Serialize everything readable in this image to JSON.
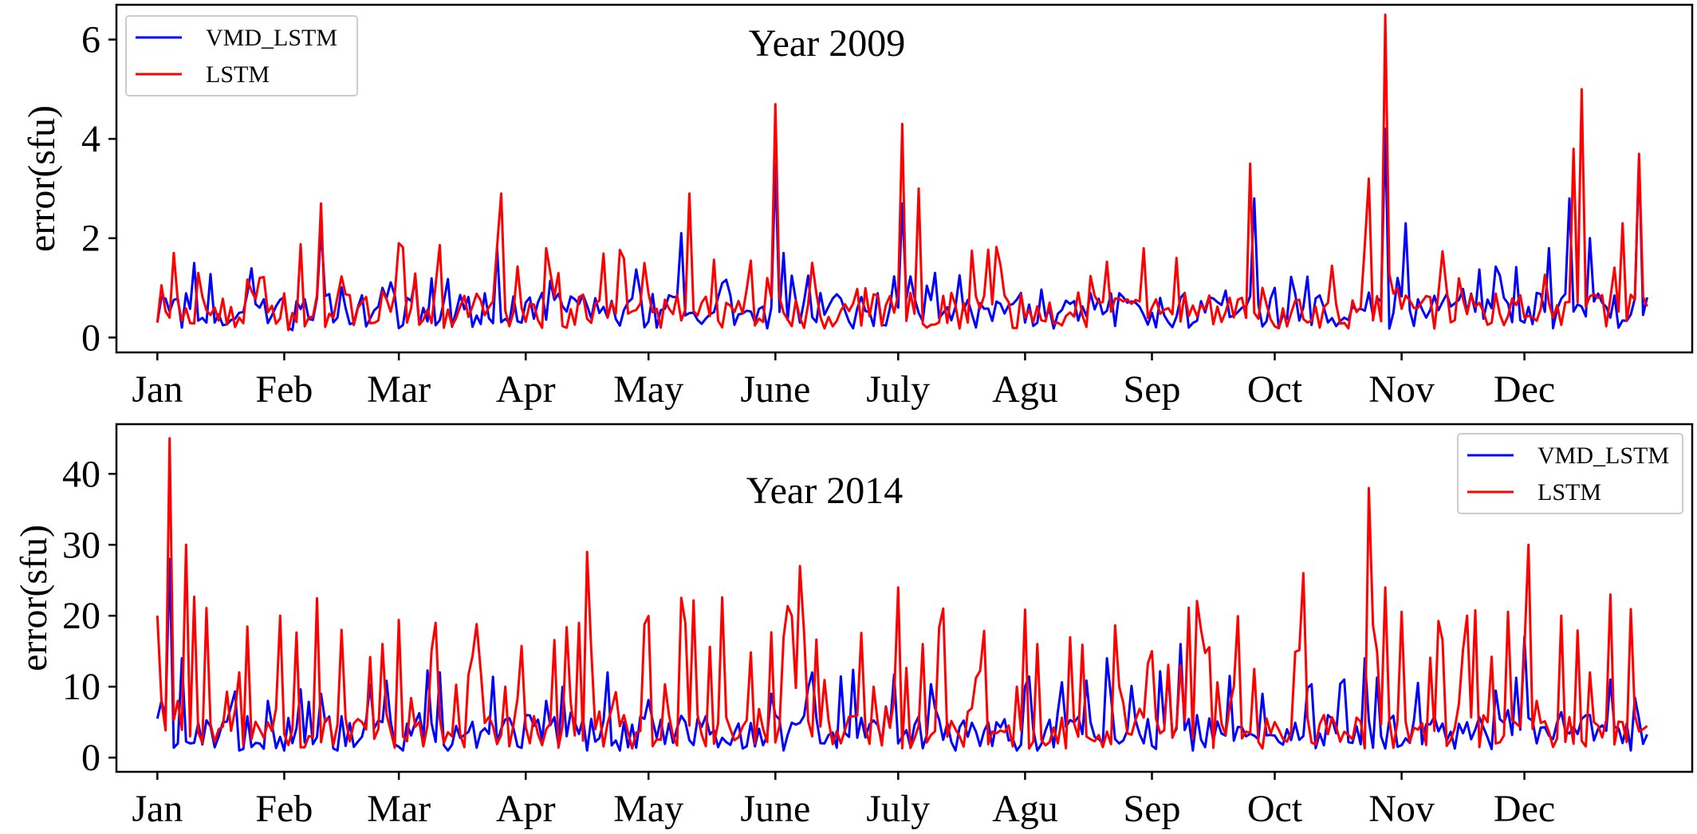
{
  "colors": {
    "VMD_LSTM": "#0000ff",
    "LSTM": "#ff0000"
  },
  "chart_data": [
    {
      "type": "line",
      "title": "Year 2009",
      "xlabel": "",
      "ylabel": "error(sfu)",
      "xlim": [
        -10,
        375
      ],
      "ylim": [
        -0.3,
        6.7
      ],
      "yticks": [
        0,
        2,
        4,
        6
      ],
      "xticks": [
        {
          "label": "Jan",
          "day": 0
        },
        {
          "label": "Feb",
          "day": 31
        },
        {
          "label": "Mar",
          "day": 59
        },
        {
          "label": "Apr",
          "day": 90
        },
        {
          "label": "May",
          "day": 120
        },
        {
          "label": "June",
          "day": 151
        },
        {
          "label": "July",
          "day": 181
        },
        {
          "label": "Agu",
          "day": 212
        },
        {
          "label": "Sep",
          "day": 243
        },
        {
          "label": "Oct",
          "day": 273
        },
        {
          "label": "Nov",
          "day": 304
        },
        {
          "label": "Dec",
          "day": 334
        }
      ],
      "legend_position": "top-left",
      "series": [
        {
          "name": "VMD_LSTM",
          "anchors": [
            [
              0,
              0.3
            ],
            [
              6,
              0.2
            ],
            [
              9,
              1.5
            ],
            [
              12,
              0.3
            ],
            [
              20,
              0.5
            ],
            [
              25,
              0.6
            ],
            [
              33,
              0.15
            ],
            [
              40,
              2.2
            ],
            [
              44,
              0.4
            ],
            [
              55,
              1.0
            ],
            [
              60,
              0.25
            ],
            [
              83,
              1.8
            ],
            [
              86,
              0.3
            ],
            [
              94,
              0.9
            ],
            [
              110,
              0.4
            ],
            [
              118,
              0.9
            ],
            [
              122,
              0.2
            ],
            [
              128,
              2.1
            ],
            [
              131,
              0.5
            ],
            [
              150,
              0.6
            ],
            [
              151,
              3.5
            ],
            [
              153,
              1.7
            ],
            [
              157,
              0.3
            ],
            [
              181,
              0.6
            ],
            [
              182,
              2.7
            ],
            [
              185,
              0.8
            ],
            [
              190,
              1.3
            ],
            [
              212,
              0.3
            ],
            [
              243,
              0.5
            ],
            [
              265,
              0.6
            ],
            [
              268,
              2.8
            ],
            [
              273,
              1.0
            ],
            [
              290,
              0.4
            ],
            [
              298,
              0.8
            ],
            [
              300,
              4.2
            ],
            [
              303,
              1.2
            ],
            [
              305,
              2.3
            ],
            [
              310,
              0.4
            ],
            [
              334,
              0.3
            ],
            [
              340,
              1.8
            ],
            [
              345,
              2.8
            ],
            [
              350,
              2.0
            ],
            [
              355,
              0.4
            ],
            [
              362,
              3.6
            ]
          ]
        },
        {
          "name": "LSTM",
          "anchors": [
            [
              0,
              0.3
            ],
            [
              1,
              1.05
            ],
            [
              3,
              0.4
            ],
            [
              10,
              1.3
            ],
            [
              20,
              0.4
            ],
            [
              25,
              1.2
            ],
            [
              32,
              0.15
            ],
            [
              40,
              2.7
            ],
            [
              43,
              0.4
            ],
            [
              59,
              1.9
            ],
            [
              61,
              0.3
            ],
            [
              84,
              2.9
            ],
            [
              87,
              0.5
            ],
            [
              95,
              1.8
            ],
            [
              110,
              0.4
            ],
            [
              119,
              1.5
            ],
            [
              123,
              0.2
            ],
            [
              130,
              2.9
            ],
            [
              133,
              0.7
            ],
            [
              150,
              0.8
            ],
            [
              151,
              4.7
            ],
            [
              153,
              0.5
            ],
            [
              180,
              0.5
            ],
            [
              182,
              4.3
            ],
            [
              184,
              0.9
            ],
            [
              186,
              3.0
            ],
            [
              188,
              0.2
            ],
            [
              212,
              0.4
            ],
            [
              243,
              0.6
            ],
            [
              265,
              0.8
            ],
            [
              267,
              3.5
            ],
            [
              270,
              1.0
            ],
            [
              296,
              3.2
            ],
            [
              300,
              6.5
            ],
            [
              303,
              1.0
            ],
            [
              308,
              0.6
            ],
            [
              334,
              0.4
            ],
            [
              346,
              3.8
            ],
            [
              348,
              5.0
            ],
            [
              352,
              0.8
            ],
            [
              358,
              2.3
            ],
            [
              362,
              3.7
            ]
          ]
        }
      ]
    },
    {
      "type": "line",
      "title": "Year 2014",
      "xlabel": "",
      "ylabel": "error(sfu)",
      "xlim": [
        -10,
        375
      ],
      "ylim": [
        -2,
        47
      ],
      "yticks": [
        0,
        10,
        20,
        30,
        40
      ],
      "xticks": [
        {
          "label": "Jan",
          "day": 0
        },
        {
          "label": "Feb",
          "day": 31
        },
        {
          "label": "Mar",
          "day": 59
        },
        {
          "label": "Apr",
          "day": 90
        },
        {
          "label": "May",
          "day": 120
        },
        {
          "label": "June",
          "day": 151
        },
        {
          "label": "July",
          "day": 181
        },
        {
          "label": "Agu",
          "day": 212
        },
        {
          "label": "Sep",
          "day": 243
        },
        {
          "label": "Oct",
          "day": 273
        },
        {
          "label": "Nov",
          "day": 304
        },
        {
          "label": "Dec",
          "day": 334
        }
      ],
      "legend_position": "top-right",
      "series": [
        {
          "name": "VMD_LSTM",
          "anchors": [
            [
              0,
              5.5
            ],
            [
              1,
              8
            ],
            [
              3,
              28
            ],
            [
              5,
              2
            ],
            [
              6,
              14
            ],
            [
              8,
              2
            ],
            [
              15,
              3
            ],
            [
              20,
              1
            ],
            [
              27,
              8
            ],
            [
              31,
              1
            ],
            [
              40,
              9
            ],
            [
              44,
              1
            ],
            [
              55,
              5
            ],
            [
              60,
              1
            ],
            [
              69,
              12
            ],
            [
              71,
              1
            ],
            [
              90,
              6
            ],
            [
              105,
              1
            ],
            [
              110,
              12
            ],
            [
              113,
              1
            ],
            [
              150,
              9
            ],
            [
              153,
              1
            ],
            [
              160,
              12
            ],
            [
              163,
              2
            ],
            [
              181,
              2
            ],
            [
              190,
              7
            ],
            [
              195,
              1
            ],
            [
              210,
              1
            ],
            [
              212,
              10
            ],
            [
              215,
              1
            ],
            [
              232,
              14
            ],
            [
              235,
              2
            ],
            [
              250,
              16
            ],
            [
              253,
              1
            ],
            [
              270,
              9
            ],
            [
              290,
              11
            ],
            [
              295,
              14
            ],
            [
              299,
              3
            ],
            [
              334,
              17
            ],
            [
              337,
              2
            ],
            [
              350,
              6
            ],
            [
              355,
              11
            ],
            [
              360,
              1
            ],
            [
              365,
              1.5
            ]
          ]
        },
        {
          "name": "LSTM",
          "anchors": [
            [
              0,
              20
            ],
            [
              1,
              8
            ],
            [
              3,
              45
            ],
            [
              5,
              8
            ],
            [
              7,
              30
            ],
            [
              8,
              3
            ],
            [
              15,
              4
            ],
            [
              20,
              12
            ],
            [
              25,
              4
            ],
            [
              30,
              20
            ],
            [
              33,
              4
            ],
            [
              45,
              18
            ],
            [
              50,
              5
            ],
            [
              55,
              16
            ],
            [
              60,
              3
            ],
            [
              68,
              19
            ],
            [
              72,
              3
            ],
            [
              85,
              10
            ],
            [
              95,
              4
            ],
            [
              103,
              19
            ],
            [
              105,
              29
            ],
            [
              107,
              4
            ],
            [
              125,
              6
            ],
            [
              129,
              19
            ],
            [
              132,
              6
            ],
            [
              140,
              4
            ],
            [
              155,
              20
            ],
            [
              157,
              27
            ],
            [
              160,
              3
            ],
            [
              175,
              10
            ],
            [
              181,
              24
            ],
            [
              187,
              16
            ],
            [
              192,
              21
            ],
            [
              196,
              3
            ],
            [
              210,
              10
            ],
            [
              215,
              16
            ],
            [
              220,
              2
            ],
            [
              235,
              10
            ],
            [
              243,
              15
            ],
            [
              250,
              13
            ],
            [
              255,
              18
            ],
            [
              263,
              10
            ],
            [
              273,
              5
            ],
            [
              280,
              26
            ],
            [
              285,
              6
            ],
            [
              296,
              38
            ],
            [
              298,
              15
            ],
            [
              300,
              24
            ],
            [
              305,
              5
            ],
            [
              320,
              20
            ],
            [
              325,
              5
            ],
            [
              335,
              30
            ],
            [
              337,
              8
            ],
            [
              343,
              20
            ],
            [
              350,
              12
            ],
            [
              355,
              23
            ],
            [
              358,
              5
            ],
            [
              363,
              4
            ],
            [
              365,
              8
            ]
          ]
        }
      ]
    }
  ]
}
